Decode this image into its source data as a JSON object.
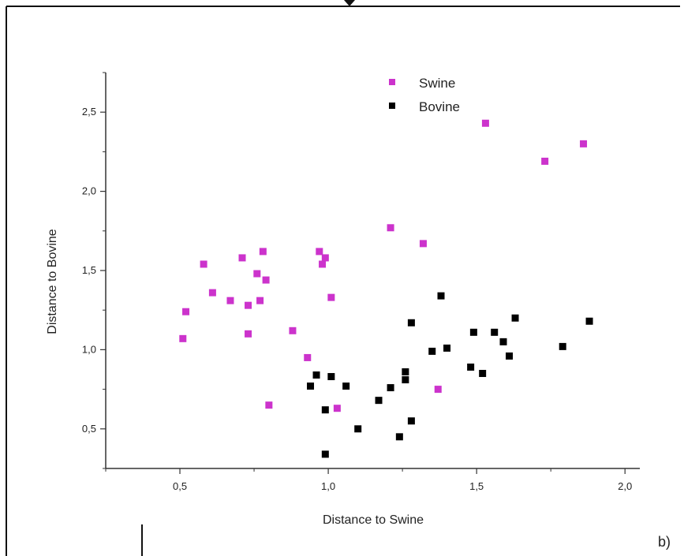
{
  "chart_data": {
    "type": "scatter",
    "xlabel": "Distance to Swine",
    "ylabel": "Distance to Bovine",
    "xlim": [
      0.25,
      2.05
    ],
    "ylim": [
      0.25,
      2.75
    ],
    "xticks": [
      0.5,
      1.0,
      1.5,
      2.0
    ],
    "xtick_labels": [
      "0,5",
      "1,0",
      "1,5",
      "2,0"
    ],
    "yticks": [
      0.5,
      1.0,
      1.5,
      2.0,
      2.5
    ],
    "ytick_labels": [
      "0,5",
      "1,0",
      "1,5",
      "2,0",
      "2,5"
    ],
    "grid": false,
    "legend_position": "top-center",
    "panel_label": "b)",
    "series": [
      {
        "name": "Swine",
        "color": "#cc33cc",
        "marker": "square",
        "points": [
          [
            0.51,
            1.07
          ],
          [
            0.52,
            1.24
          ],
          [
            0.58,
            1.54
          ],
          [
            0.61,
            1.36
          ],
          [
            0.67,
            1.31
          ],
          [
            0.71,
            1.58
          ],
          [
            0.73,
            1.28
          ],
          [
            0.73,
            1.1
          ],
          [
            0.76,
            1.48
          ],
          [
            0.77,
            1.31
          ],
          [
            0.78,
            1.62
          ],
          [
            0.79,
            1.44
          ],
          [
            0.8,
            0.65
          ],
          [
            0.88,
            1.12
          ],
          [
            0.93,
            0.95
          ],
          [
            0.97,
            1.62
          ],
          [
            0.98,
            1.54
          ],
          [
            0.99,
            1.58
          ],
          [
            1.01,
            1.33
          ],
          [
            1.03,
            0.63
          ],
          [
            1.21,
            1.77
          ],
          [
            1.32,
            1.67
          ],
          [
            1.37,
            0.75
          ],
          [
            1.53,
            2.43
          ],
          [
            1.73,
            2.19
          ],
          [
            1.86,
            2.3
          ]
        ]
      },
      {
        "name": "Bovine",
        "color": "#000000",
        "marker": "square",
        "points": [
          [
            0.94,
            0.77
          ],
          [
            0.96,
            0.84
          ],
          [
            0.99,
            0.62
          ],
          [
            0.99,
            0.34
          ],
          [
            1.01,
            0.83
          ],
          [
            1.06,
            0.77
          ],
          [
            1.1,
            0.5
          ],
          [
            1.17,
            0.68
          ],
          [
            1.21,
            0.76
          ],
          [
            1.24,
            0.45
          ],
          [
            1.26,
            0.81
          ],
          [
            1.26,
            0.86
          ],
          [
            1.28,
            1.17
          ],
          [
            1.28,
            0.55
          ],
          [
            1.35,
            0.99
          ],
          [
            1.38,
            1.34
          ],
          [
            1.4,
            1.01
          ],
          [
            1.48,
            0.89
          ],
          [
            1.49,
            1.11
          ],
          [
            1.52,
            0.85
          ],
          [
            1.56,
            1.11
          ],
          [
            1.59,
            1.05
          ],
          [
            1.61,
            0.96
          ],
          [
            1.63,
            1.2
          ],
          [
            1.79,
            1.02
          ],
          [
            1.88,
            1.18
          ]
        ]
      }
    ]
  }
}
